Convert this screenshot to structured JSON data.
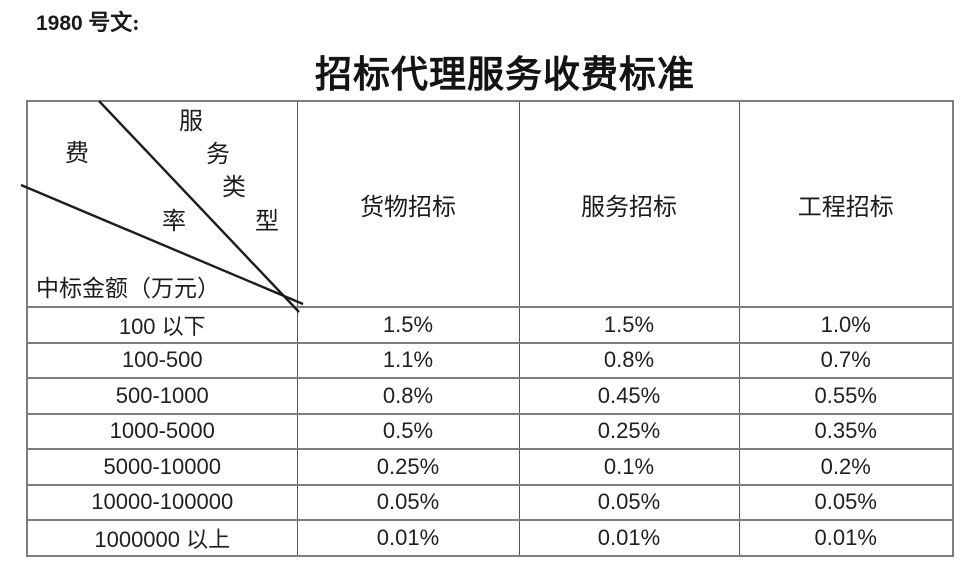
{
  "header": {
    "doc_number": "1980",
    "doc_label": " 号文:",
    "title": "招标代理服务收费标准"
  },
  "table": {
    "corner": {
      "col_axis_chars": [
        "服",
        "务",
        "类",
        "型"
      ],
      "rate_chars": [
        "费",
        "率"
      ],
      "row_axis_label": "中标金额（万元）"
    },
    "columns": [
      "货物招标",
      "服务招标",
      "工程招标"
    ],
    "rows": [
      {
        "range": "100 以下",
        "values": [
          "1.5%",
          "1.5%",
          "1.0%"
        ]
      },
      {
        "range": "100-500",
        "values": [
          "1.1%",
          "0.8%",
          "0.7%"
        ]
      },
      {
        "range": "500-1000",
        "values": [
          "0.8%",
          "0.45%",
          "0.55%"
        ]
      },
      {
        "range": "1000-5000",
        "values": [
          "0.5%",
          "0.25%",
          "0.35%"
        ]
      },
      {
        "range": "5000-10000",
        "values": [
          "0.25%",
          "0.1%",
          "0.2%"
        ]
      },
      {
        "range": "10000-100000",
        "values": [
          "0.05%",
          "0.05%",
          "0.05%"
        ]
      },
      {
        "range": "1000000 以上",
        "values": [
          "0.01%",
          "0.01%",
          "0.01%"
        ]
      }
    ],
    "colors": {
      "border_horizontal": "#7e7e7e",
      "border_vertical": "#565656",
      "diagonal_line": "#1c1c1c",
      "text": "#1f1f1f"
    }
  }
}
